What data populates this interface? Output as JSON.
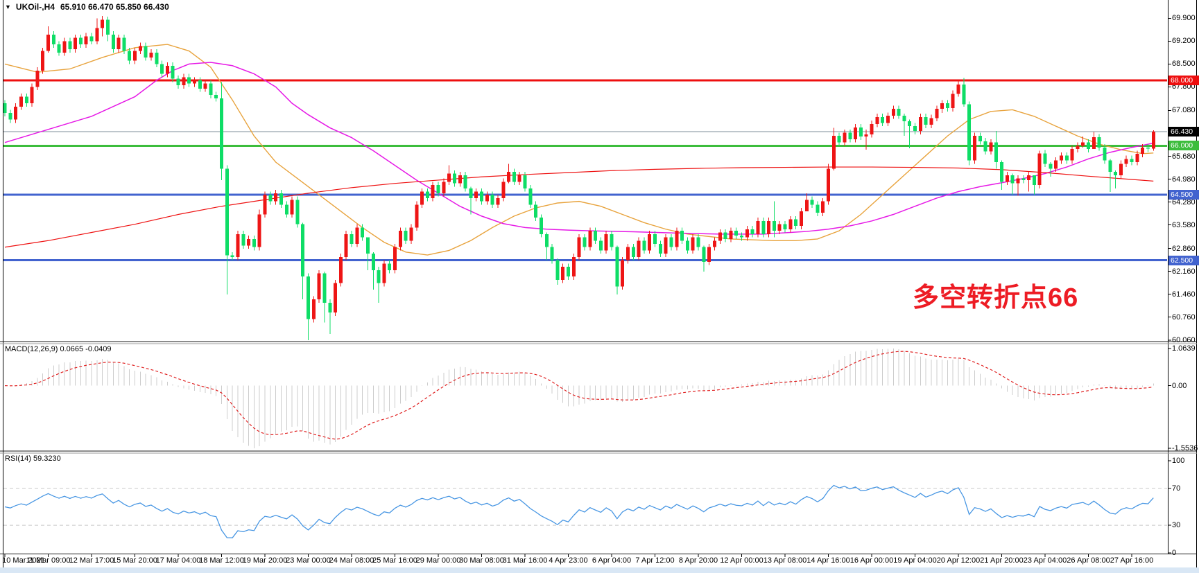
{
  "window": {
    "title": {
      "symbol": "UKOil-,H4",
      "values": "65.910 66.470 65.850 66.430"
    }
  },
  "annotation": {
    "text": "多空转折点66",
    "color": "#ed1c24"
  },
  "colors": {
    "background": "#ffffff",
    "border": "#000000",
    "bottom_strip": "#d9e7f5",
    "candle_up": "#ee1515",
    "candle_down": "#0edd66",
    "separator_dark": "#1a1a1a"
  },
  "chart_data": {
    "type": "candlestick",
    "symbol": "UKOil-",
    "timeframe": "H4",
    "convention": "red-up-green-down",
    "last_bar": {
      "open": 65.91,
      "high": 66.47,
      "low": 65.85,
      "close": 66.43
    },
    "first_open": 67.3,
    "default_wick": 0.1,
    "closes": [
      67.0,
      66.8,
      67.2,
      67.5,
      67.3,
      67.8,
      68.3,
      68.9,
      69.4,
      69.1,
      68.85,
      69.2,
      68.95,
      69.3,
      69.1,
      69.35,
      69.2,
      69.6,
      69.85,
      69.4,
      68.95,
      69.3,
      68.9,
      68.6,
      68.9,
      69.05,
      68.7,
      68.85,
      68.5,
      68.2,
      68.45,
      68.05,
      67.85,
      68.1,
      67.9,
      68.0,
      67.75,
      67.9,
      67.55,
      67.45,
      65.3,
      62.65,
      62.6,
      63.3,
      62.95,
      63.15,
      62.9,
      63.9,
      64.5,
      64.3,
      64.55,
      64.2,
      63.9,
      64.35,
      63.6,
      62.0,
      60.7,
      61.3,
      62.1,
      61.2,
      60.9,
      61.8,
      62.6,
      63.3,
      63.0,
      63.5,
      63.2,
      62.7,
      62.2,
      61.8,
      62.4,
      62.2,
      62.9,
      63.4,
      63.1,
      63.5,
      64.2,
      64.6,
      64.4,
      64.8,
      64.55,
      64.9,
      65.15,
      64.85,
      65.1,
      64.7,
      64.4,
      64.6,
      64.3,
      64.5,
      64.2,
      64.4,
      64.9,
      65.2,
      64.9,
      65.1,
      64.7,
      64.2,
      63.8,
      63.3,
      62.9,
      62.5,
      61.9,
      62.3,
      62.0,
      62.6,
      63.2,
      62.9,
      63.4,
      63.1,
      62.8,
      63.3,
      62.9,
      61.7,
      62.5,
      62.9,
      62.6,
      63.1,
      62.8,
      63.3,
      63.0,
      62.7,
      63.2,
      62.9,
      63.4,
      63.1,
      62.8,
      63.2,
      62.9,
      62.45,
      62.9,
      63.1,
      63.35,
      63.15,
      63.4,
      63.25,
      63.2,
      63.45,
      63.3,
      63.7,
      63.3,
      63.7,
      63.4,
      63.6,
      63.45,
      63.75,
      63.55,
      64.0,
      64.35,
      64.2,
      63.95,
      64.3,
      65.3,
      66.3,
      66.1,
      66.4,
      66.2,
      66.56,
      66.28,
      66.35,
      66.67,
      66.88,
      66.7,
      66.92,
      67.13,
      66.92,
      66.75,
      66.6,
      66.45,
      66.88,
      66.64,
      66.85,
      67.13,
      67.3,
      67.15,
      67.59,
      67.87,
      67.27,
      65.55,
      66.3,
      66.14,
      65.83,
      66.1,
      65.5,
      64.9,
      65.1,
      64.85,
      65.0,
      64.95,
      65.1,
      64.8,
      65.77,
      65.45,
      65.3,
      65.55,
      65.7,
      65.55,
      65.9,
      66.0,
      66.1,
      65.9,
      66.26,
      65.95,
      65.55,
      65.2,
      65.1,
      65.45,
      65.6,
      65.5,
      65.75,
      65.95,
      65.91,
      66.43
    ],
    "hl_overrides": {
      "8": [
        69.65,
        68.85
      ],
      "17": [
        69.9,
        69.1
      ],
      "18": [
        69.97,
        69.35
      ],
      "19": [
        69.95,
        69.2
      ],
      "40": [
        67.95,
        64.95
      ],
      "41": [
        65.4,
        61.45
      ],
      "47": [
        64.05,
        62.8
      ],
      "55": [
        63.65,
        61.3
      ],
      "56": [
        62.1,
        60.06
      ],
      "59": [
        62.15,
        60.6
      ],
      "60": [
        61.3,
        60.25
      ],
      "67": [
        62.95,
        62.2
      ],
      "68": [
        62.75,
        61.6
      ],
      "69": [
        62.3,
        61.2
      ],
      "82": [
        65.4,
        64.8
      ],
      "86": [
        64.75,
        63.9
      ],
      "93": [
        65.45,
        64.85
      ],
      "100": [
        63.35,
        62.5
      ],
      "102": [
        62.55,
        61.75
      ],
      "113": [
        62.95,
        61.45
      ],
      "129": [
        62.95,
        62.15
      ],
      "142": [
        64.3,
        63.2
      ],
      "148": [
        64.55,
        64.1
      ],
      "152": [
        65.45,
        64.2
      ],
      "153": [
        66.55,
        65.25
      ],
      "159": [
        66.5,
        65.88
      ],
      "166": [
        66.98,
        66.3
      ],
      "167": [
        66.8,
        65.92
      ],
      "173": [
        67.4,
        67.0
      ],
      "176": [
        67.99,
        67.5
      ],
      "177": [
        68.07,
        67.2
      ],
      "178": [
        67.35,
        65.4
      ],
      "183": [
        66.45,
        65.3
      ],
      "184": [
        65.55,
        64.65
      ],
      "186": [
        65.15,
        64.5
      ],
      "187": [
        65.1,
        64.47
      ],
      "189": [
        65.2,
        64.6
      ],
      "190": [
        64.95,
        64.5
      ],
      "191": [
        65.85,
        64.7
      ],
      "193": [
        65.5,
        65.05
      ],
      "199": [
        66.28,
        65.95
      ],
      "201": [
        66.42,
        65.9
      ],
      "204": [
        65.6,
        64.59
      ],
      "205": [
        65.25,
        64.7
      ],
      "212": [
        66.47,
        65.85
      ]
    },
    "moving_averages": [
      {
        "name": "ma-medium-orange",
        "color": "#e8a33d",
        "width": 1.4,
        "anchors": [
          [
            0,
            68.5
          ],
          [
            6,
            68.25
          ],
          [
            12,
            68.35
          ],
          [
            18,
            68.7
          ],
          [
            24,
            69.0
          ],
          [
            30,
            69.1
          ],
          [
            34,
            68.9
          ],
          [
            38,
            68.4
          ],
          [
            42,
            67.4
          ],
          [
            46,
            66.3
          ],
          [
            50,
            65.5
          ],
          [
            54,
            65.0
          ],
          [
            58,
            64.5
          ],
          [
            62,
            64.0
          ],
          [
            66,
            63.5
          ],
          [
            70,
            63.05
          ],
          [
            74,
            62.75
          ],
          [
            78,
            62.66
          ],
          [
            82,
            62.8
          ],
          [
            86,
            63.1
          ],
          [
            90,
            63.5
          ],
          [
            94,
            63.85
          ],
          [
            98,
            64.1
          ],
          [
            102,
            64.25
          ],
          [
            106,
            64.3
          ],
          [
            110,
            64.15
          ],
          [
            114,
            63.9
          ],
          [
            118,
            63.65
          ],
          [
            122,
            63.45
          ],
          [
            126,
            63.3
          ],
          [
            134,
            63.15
          ],
          [
            142,
            63.1
          ],
          [
            146,
            63.1
          ],
          [
            150,
            63.15
          ],
          [
            154,
            63.4
          ],
          [
            158,
            63.9
          ],
          [
            162,
            64.5
          ],
          [
            166,
            65.1
          ],
          [
            170,
            65.7
          ],
          [
            174,
            66.3
          ],
          [
            178,
            66.8
          ],
          [
            182,
            67.05
          ],
          [
            186,
            67.1
          ],
          [
            190,
            66.9
          ],
          [
            194,
            66.6
          ],
          [
            198,
            66.3
          ],
          [
            202,
            66.05
          ],
          [
            206,
            65.88
          ],
          [
            210,
            65.76
          ],
          [
            212,
            65.78
          ]
        ]
      },
      {
        "name": "ma-slow-magenta",
        "color": "#e619e6",
        "width": 1.5,
        "anchors": [
          [
            0,
            66.1
          ],
          [
            8,
            66.5
          ],
          [
            16,
            66.9
          ],
          [
            24,
            67.5
          ],
          [
            28,
            68.0
          ],
          [
            31,
            68.3
          ],
          [
            34,
            68.5
          ],
          [
            38,
            68.55
          ],
          [
            42,
            68.45
          ],
          [
            46,
            68.2
          ],
          [
            50,
            67.8
          ],
          [
            53,
            67.3
          ],
          [
            56,
            66.95
          ],
          [
            60,
            66.55
          ],
          [
            64,
            66.25
          ],
          [
            68,
            65.85
          ],
          [
            72,
            65.4
          ],
          [
            76,
            64.95
          ],
          [
            80,
            64.55
          ],
          [
            84,
            64.15
          ],
          [
            88,
            63.85
          ],
          [
            92,
            63.62
          ],
          [
            96,
            63.5
          ],
          [
            100,
            63.45
          ],
          [
            104,
            63.42
          ],
          [
            108,
            63.4
          ],
          [
            116,
            63.37
          ],
          [
            124,
            63.33
          ],
          [
            132,
            63.3
          ],
          [
            140,
            63.3
          ],
          [
            148,
            63.38
          ],
          [
            152,
            63.45
          ],
          [
            156,
            63.55
          ],
          [
            160,
            63.7
          ],
          [
            164,
            63.9
          ],
          [
            168,
            64.15
          ],
          [
            172,
            64.4
          ],
          [
            176,
            64.6
          ],
          [
            180,
            64.75
          ],
          [
            184,
            64.87
          ],
          [
            188,
            65.0
          ],
          [
            192,
            65.15
          ],
          [
            196,
            65.35
          ],
          [
            200,
            65.6
          ],
          [
            204,
            65.8
          ],
          [
            208,
            65.95
          ],
          [
            212,
            66.08
          ]
        ]
      },
      {
        "name": "ma-long-red",
        "color": "#ee1111",
        "width": 1.2,
        "anchors": [
          [
            0,
            62.9
          ],
          [
            8,
            63.1
          ],
          [
            16,
            63.35
          ],
          [
            24,
            63.6
          ],
          [
            32,
            63.9
          ],
          [
            40,
            64.15
          ],
          [
            48,
            64.35
          ],
          [
            56,
            64.55
          ],
          [
            64,
            64.72
          ],
          [
            72,
            64.85
          ],
          [
            80,
            64.95
          ],
          [
            88,
            65.05
          ],
          [
            96,
            65.12
          ],
          [
            104,
            65.18
          ],
          [
            112,
            65.24
          ],
          [
            120,
            65.28
          ],
          [
            128,
            65.31
          ],
          [
            136,
            65.33
          ],
          [
            144,
            65.34
          ],
          [
            152,
            65.35
          ],
          [
            160,
            65.35
          ],
          [
            168,
            65.34
          ],
          [
            176,
            65.32
          ],
          [
            184,
            65.27
          ],
          [
            192,
            65.18
          ],
          [
            200,
            65.07
          ],
          [
            208,
            64.97
          ],
          [
            212,
            64.92
          ]
        ]
      }
    ],
    "horizontal_lines": [
      {
        "price": 68.0,
        "color": "#ee0f0f",
        "width": 3
      },
      {
        "price": 66.43,
        "color": "#7d8e99",
        "width": 1
      },
      {
        "price": 66.0,
        "color": "#3cbd3c",
        "width": 3
      },
      {
        "price": 64.5,
        "color": "#4263cf",
        "width": 3
      },
      {
        "price": 62.5,
        "color": "#4263cf",
        "width": 3
      }
    ],
    "price_axis": {
      "ticks": [
        {
          "label": "69.900",
          "price": 69.9
        },
        {
          "label": "69.200",
          "price": 69.2
        },
        {
          "label": "68.500",
          "price": 68.5
        },
        {
          "label": "67.800",
          "price": 67.8
        },
        {
          "label": "67.080",
          "price": 67.08
        },
        {
          "label": "65.680",
          "price": 65.68
        },
        {
          "label": "64.980",
          "price": 64.98
        },
        {
          "label": "64.280",
          "price": 64.28
        },
        {
          "label": "63.580",
          "price": 63.58
        },
        {
          "label": "62.860",
          "price": 62.86
        },
        {
          "label": "62.160",
          "price": 62.16
        },
        {
          "label": "61.460",
          "price": 61.46
        },
        {
          "label": "60.760",
          "price": 60.76
        },
        {
          "label": "60.060",
          "price": 60.06
        }
      ],
      "badges": [
        {
          "label": "68.000",
          "price": 68.0,
          "bg": "#ee0f0f"
        },
        {
          "label": "66.430",
          "price": 66.43,
          "bg": "#000000"
        },
        {
          "label": "66.000",
          "price": 66.0,
          "bg": "#3cbd3c"
        },
        {
          "label": "64.500",
          "price": 64.5,
          "bg": "#4263cf"
        },
        {
          "label": "62.500",
          "price": 62.5,
          "bg": "#4263cf"
        }
      ]
    },
    "time_axis": {
      "bars_per_label": 8,
      "labels": [
        "10 Mar 2021",
        "11 Mar 09:00",
        "12 Mar 17:00",
        "15 Mar 20:00",
        "17 Mar 04:00",
        "18 Mar 12:00",
        "19 Mar 20:00",
        "23 Mar 00:00",
        "24 Mar 08:00",
        "25 Mar 16:00",
        "29 Mar 00:00",
        "30 Mar 08:00",
        "31 Mar 16:00",
        "4 Apr 23:00",
        "6 Apr 04:00",
        "7 Apr 12:00",
        "8 Apr 20:00",
        "12 Apr 00:00",
        "13 Apr 08:00",
        "14 Apr 16:00",
        "16 Apr 00:00",
        "19 Apr 04:00",
        "20 Apr 12:00",
        "21 Apr 20:00",
        "23 Apr 04:00",
        "26 Apr 08:00",
        "27 Apr 16:00"
      ]
    },
    "indicators": {
      "macd": {
        "label": "MACD(12,26,9)",
        "values": "0.0665 -0.0409",
        "fast": 12,
        "slow": 26,
        "signal": 9,
        "scale_top": "1.0639",
        "scale_zero": "0.00",
        "scale_bottom": "-1.5536",
        "histogram_color": "#cccccc",
        "signal_color": "#e02222"
      },
      "rsi": {
        "label": "RSI(14)",
        "value": "59.3230",
        "period": 14,
        "color": "#4796e3",
        "scale_labels": [
          "100",
          "70",
          "30",
          "0"
        ],
        "levels": [
          70,
          30
        ],
        "level_color": "#c8c8c8"
      }
    }
  }
}
